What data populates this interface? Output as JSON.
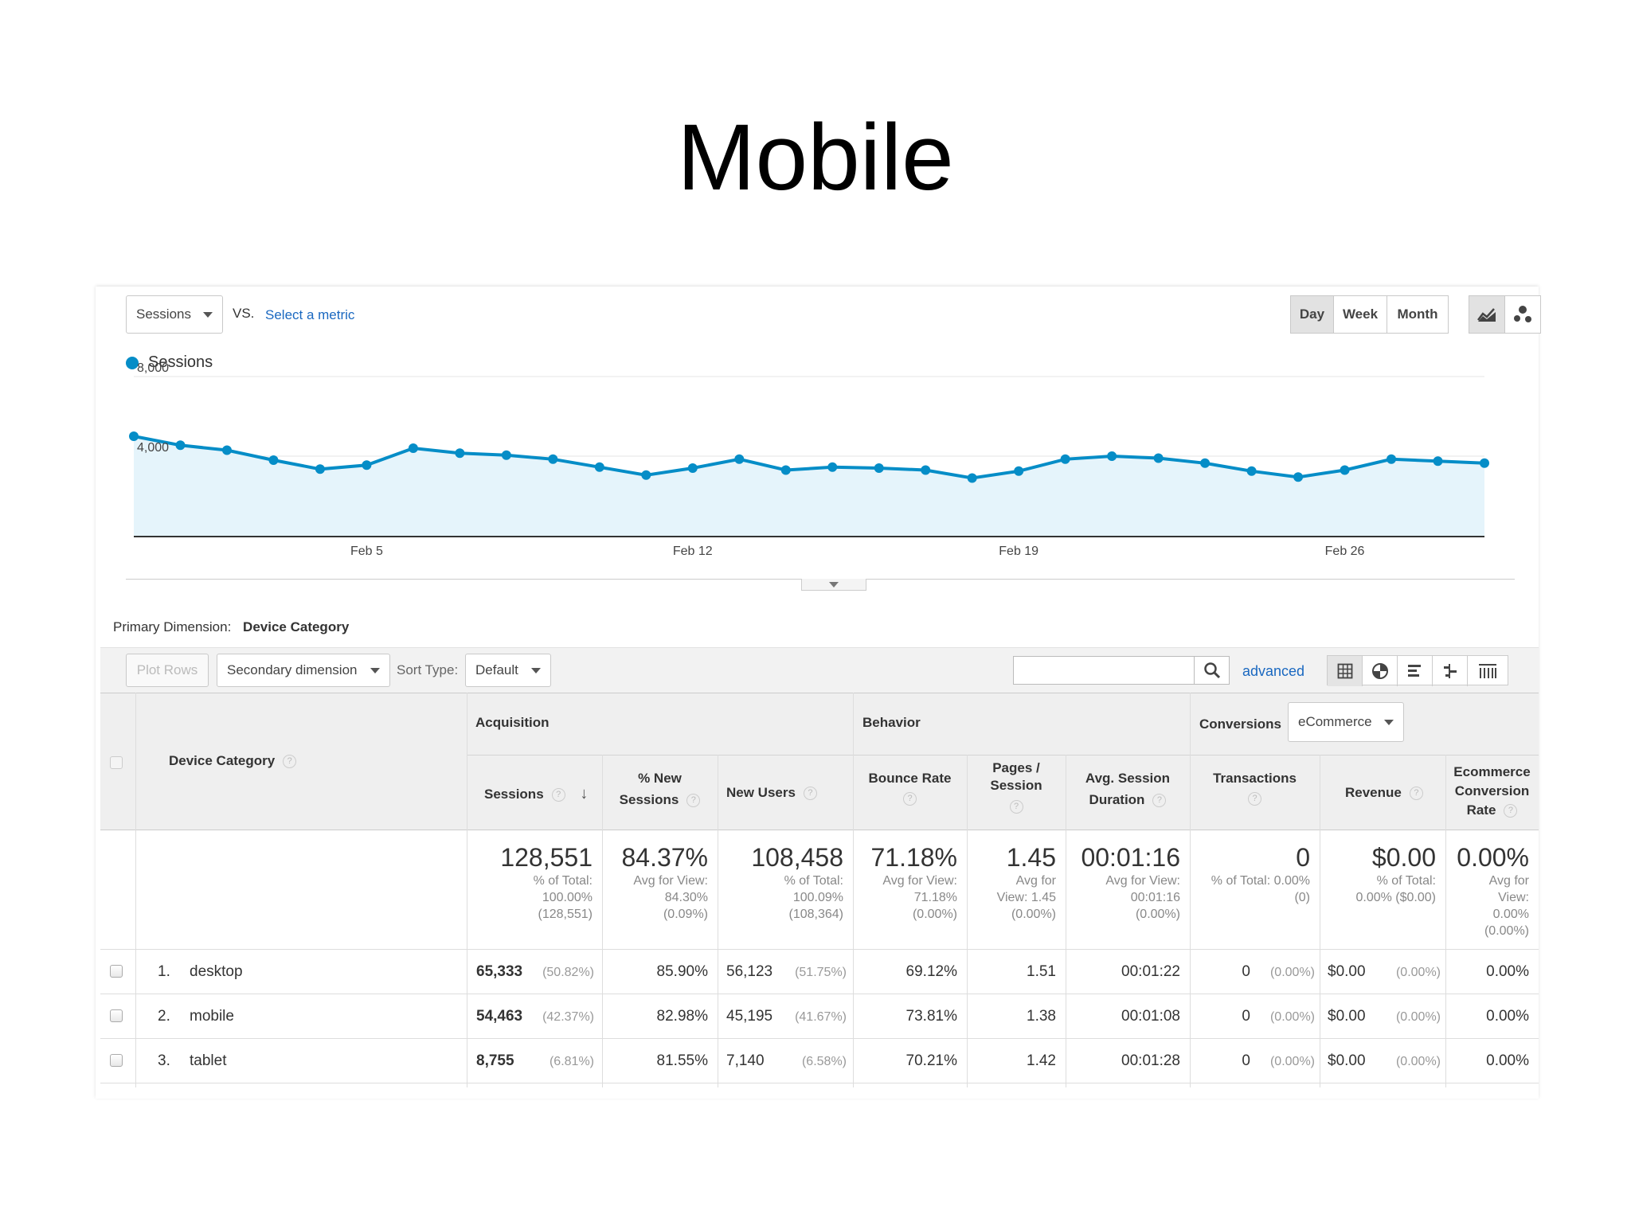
{
  "slide": {
    "title": "Mobile"
  },
  "toolbar": {
    "metric_select": "Sessions",
    "vs_label": "VS.",
    "select_metric_link": "Select a metric",
    "period_buttons": [
      "Day",
      "Week",
      "Month"
    ],
    "active_period": "Day",
    "chart_icons": [
      "line-chart-icon",
      "motion-chart-icon"
    ]
  },
  "chart_data": {
    "type": "area",
    "series": [
      {
        "name": "Sessions",
        "color": "#058dc7",
        "values": [
          5000,
          4550,
          4300,
          3800,
          3350,
          3550,
          4400,
          4150,
          4050,
          3850,
          3450,
          3050,
          3400,
          3850,
          3300,
          3450,
          3400,
          3300,
          2900,
          3250,
          3850,
          4000,
          3900,
          3650,
          3250,
          2950,
          3300,
          3850,
          3750,
          3650
        ]
      }
    ],
    "x_tick_labels": [
      "Feb 5",
      "Feb 12",
      "Feb 19",
      "Feb 26"
    ],
    "x_tick_indices": [
      5,
      12,
      19,
      26
    ],
    "y_tick_labels": [
      "8,000",
      "4,000"
    ],
    "y_tick_values": [
      8000,
      4000
    ],
    "ylim": [
      0,
      8000
    ],
    "legend": "top-left",
    "grid": true
  },
  "dimension": {
    "label": "Primary Dimension:",
    "value": "Device Category"
  },
  "controls": {
    "plot_rows": "Plot Rows",
    "secondary_dimension": "Secondary dimension",
    "sort_type_label": "Sort Type:",
    "sort_type_value": "Default",
    "search_placeholder": "",
    "advanced_link": "advanced",
    "view_icons": [
      "data-table-icon",
      "pie-chart-icon",
      "performance-bars-icon",
      "comparison-icon",
      "pivot-icon"
    ]
  },
  "table": {
    "groups": {
      "acquisition": "Acquisition",
      "behavior": "Behavior",
      "conversions": "Conversions",
      "conversions_select": "eCommerce"
    },
    "dimension_header": "Device Category",
    "columns": [
      {
        "label1": "Sessions",
        "label2": ""
      },
      {
        "label1": "% New",
        "label2": "Sessions"
      },
      {
        "label1": "New Users",
        "label2": ""
      },
      {
        "label1": "Bounce Rate",
        "label2": ""
      },
      {
        "label1": "Pages /",
        "label2": "Session"
      },
      {
        "label1": "Avg. Session",
        "label2": "Duration"
      },
      {
        "label1": "Transactions",
        "label2": ""
      },
      {
        "label1": "Revenue",
        "label2": ""
      },
      {
        "label1": "Ecommerce",
        "label2": "Conversion",
        "label3": "Rate"
      }
    ],
    "totals": [
      {
        "value": "128,551",
        "sub": [
          "% of Total:",
          "100.00%",
          "(128,551)"
        ]
      },
      {
        "value": "84.37%",
        "sub": [
          "Avg for View:",
          "84.30%",
          "(0.09%)"
        ]
      },
      {
        "value": "108,458",
        "sub": [
          "% of Total:",
          "100.09%",
          "(108,364)"
        ]
      },
      {
        "value": "71.18%",
        "sub": [
          "Avg for View:",
          "71.18%",
          "(0.00%)"
        ]
      },
      {
        "value": "1.45",
        "sub": [
          "Avg for",
          "View: 1.45",
          "(0.00%)"
        ]
      },
      {
        "value": "00:01:16",
        "sub": [
          "Avg for View:",
          "00:01:16",
          "(0.00%)"
        ]
      },
      {
        "value": "0",
        "sub": [
          "% of Total: 0.00%",
          "(0)"
        ]
      },
      {
        "value": "$0.00",
        "sub": [
          "% of Total:",
          "0.00% ($0.00)"
        ]
      },
      {
        "value": "0.00%",
        "sub": [
          "Avg for",
          "View:",
          "0.00%",
          "(0.00%)"
        ]
      }
    ],
    "rows": [
      {
        "index": "1.",
        "name": "desktop",
        "sessions": "65,333",
        "sessions_pct": "(50.82%)",
        "new_sessions": "85.90%",
        "new_users": "56,123",
        "new_users_pct": "(51.75%)",
        "bounce": "69.12%",
        "pages": "1.51",
        "duration": "00:01:22",
        "transactions": "0",
        "transactions_pct": "(0.00%)",
        "revenue": "$0.00",
        "revenue_pct": "(0.00%)",
        "conv_rate": "0.00%"
      },
      {
        "index": "2.",
        "name": "mobile",
        "sessions": "54,463",
        "sessions_pct": "(42.37%)",
        "new_sessions": "82.98%",
        "new_users": "45,195",
        "new_users_pct": "(41.67%)",
        "bounce": "73.81%",
        "pages": "1.38",
        "duration": "00:01:08",
        "transactions": "0",
        "transactions_pct": "(0.00%)",
        "revenue": "$0.00",
        "revenue_pct": "(0.00%)",
        "conv_rate": "0.00%"
      },
      {
        "index": "3.",
        "name": "tablet",
        "sessions": "8,755",
        "sessions_pct": "(6.81%)",
        "new_sessions": "81.55%",
        "new_users": "7,140",
        "new_users_pct": "(6.58%)",
        "bounce": "70.21%",
        "pages": "1.42",
        "duration": "00:01:28",
        "transactions": "0",
        "transactions_pct": "(0.00%)",
        "revenue": "$0.00",
        "revenue_pct": "(0.00%)",
        "conv_rate": "0.00%"
      }
    ]
  }
}
